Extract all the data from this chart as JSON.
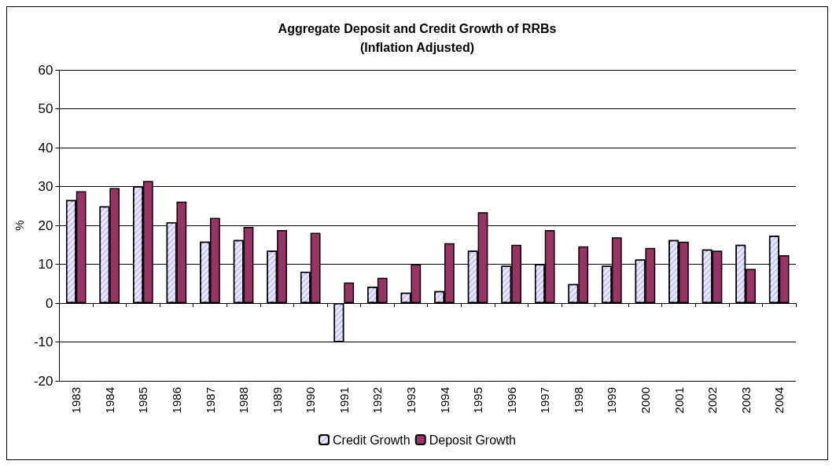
{
  "chart_data": {
    "type": "bar",
    "title": "Aggregate Deposit and Credit Growth of RRBs\n(Inflation Adjusted)",
    "ylabel": "%",
    "categories": [
      "1983",
      "1984",
      "1985",
      "1986",
      "1987",
      "1988",
      "1989",
      "1990",
      "1991",
      "1992",
      "1993",
      "1994",
      "1995",
      "1996",
      "1997",
      "1998",
      "1999",
      "2000",
      "2001",
      "2002",
      "2003",
      "2004"
    ],
    "series": [
      {
        "name": "Credit Growth",
        "color": "#ccccff",
        "values": [
          26.5,
          24.9,
          30,
          20.8,
          15.8,
          16.2,
          13.5,
          8.1,
          -10,
          4.2,
          2.7,
          3.1,
          13.5,
          9.6,
          10,
          4.9,
          9.6,
          11.2,
          16.2,
          13.8,
          15,
          17.3
        ]
      },
      {
        "name": "Deposit Growth",
        "color": "#993366",
        "values": [
          28.8,
          29.6,
          31.4,
          26.1,
          21.9,
          19.6,
          18.8,
          18.1,
          5.3,
          6.5,
          10,
          15.4,
          23.4,
          15,
          18.8,
          14.6,
          16.9,
          14.2,
          15.8,
          13.5,
          8.8,
          12.3
        ]
      }
    ],
    "ylim": [
      -20,
      60
    ],
    "yticks": [
      -20,
      -10,
      0,
      10,
      20,
      30,
      40,
      50,
      60
    ],
    "grid": "y",
    "legend": "bottom"
  }
}
